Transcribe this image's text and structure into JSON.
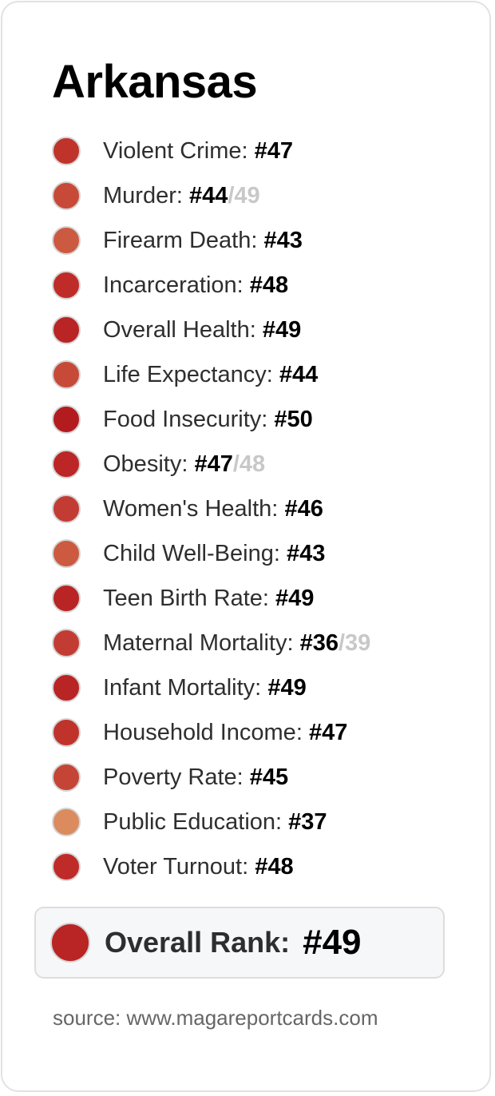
{
  "state": "Arkansas",
  "metrics": [
    {
      "label": "Violent Crime:",
      "rank": "#47",
      "alt": "",
      "color": "#c0332b"
    },
    {
      "label": "Murder:",
      "rank": "#44",
      "alt": "/49",
      "color": "#c74a39"
    },
    {
      "label": "Firearm Death:",
      "rank": "#43",
      "alt": "",
      "color": "#cc5a40"
    },
    {
      "label": "Incarceration:",
      "rank": "#48",
      "alt": "",
      "color": "#bf2b28"
    },
    {
      "label": "Overall Health:",
      "rank": "#49",
      "alt": "",
      "color": "#b92424"
    },
    {
      "label": "Life Expectancy:",
      "rank": "#44",
      "alt": "",
      "color": "#c74a39"
    },
    {
      "label": "Food Insecurity:",
      "rank": "#50",
      "alt": "",
      "color": "#b31c1e"
    },
    {
      "label": "Obesity:",
      "rank": "#47",
      "alt": "/48",
      "color": "#bc2626"
    },
    {
      "label": "Women's Health:",
      "rank": "#46",
      "alt": "",
      "color": "#c33c33"
    },
    {
      "label": "Child Well-Being:",
      "rank": "#43",
      "alt": "",
      "color": "#cc5a40"
    },
    {
      "label": "Teen Birth Rate:",
      "rank": "#49",
      "alt": "",
      "color": "#b92424"
    },
    {
      "label": "Maternal Mortality:",
      "rank": "#36",
      "alt": "/39",
      "color": "#c33c33"
    },
    {
      "label": "Infant Mortality:",
      "rank": "#49",
      "alt": "",
      "color": "#b92424"
    },
    {
      "label": "Household Income:",
      "rank": "#47",
      "alt": "",
      "color": "#c0332b"
    },
    {
      "label": "Poverty Rate:",
      "rank": "#45",
      "alt": "",
      "color": "#c44536"
    },
    {
      "label": "Public Education:",
      "rank": "#37",
      "alt": "",
      "color": "#db8b5e"
    },
    {
      "label": "Voter Turnout:",
      "rank": "#48",
      "alt": "",
      "color": "#bf2b28"
    }
  ],
  "overall": {
    "label": "Overall Rank:",
    "rank": "#49",
    "color": "#b92424"
  },
  "source": "source: www.magareportcards.com"
}
